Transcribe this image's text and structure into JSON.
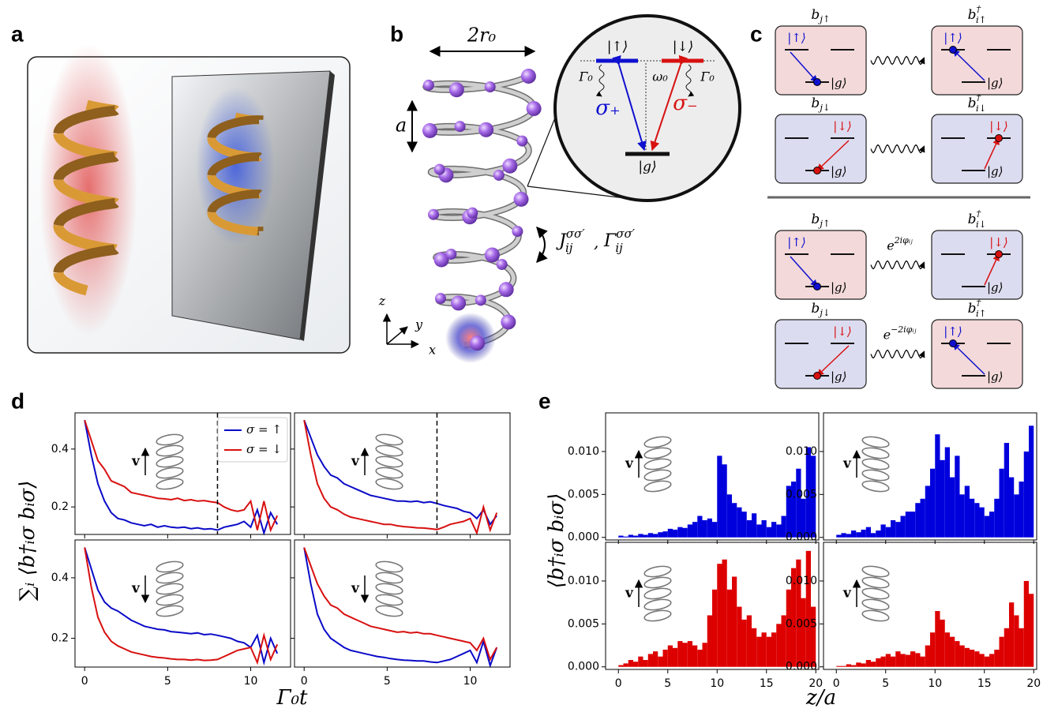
{
  "panel_labels": [
    "a",
    "b",
    "c",
    "d",
    "e"
  ],
  "panel_b": {
    "width_label": "2r₀",
    "pitch_label": "a",
    "coupling": [
      {
        "symbol": "J",
        "sup": "σσ′",
        "sub": "ij"
      },
      {
        "symbol": "Γ",
        "sup": "σσ′",
        "sub": "ij"
      }
    ],
    "separator": ",",
    "axes": {
      "x": "x",
      "y": "y",
      "z": "z"
    },
    "levels": {
      "up": "|↑⟩",
      "down": "|↓⟩",
      "ground": "|g⟩",
      "decay_left": "Γ₀",
      "decay_right": "Γ₀",
      "splitting": "ω₀",
      "sigma_plus": "σ₊",
      "sigma_minus": "σ₋"
    }
  },
  "panel_c": {
    "rows": [
      {
        "left": {
          "op": {
            "symbol": "b",
            "sub": "j↑"
          },
          "spin": "up",
          "state": "|↑⟩",
          "ground": "|g⟩"
        },
        "right": {
          "op": {
            "symbol": "b",
            "sup": "†",
            "sub": "i↑"
          },
          "spin": "up",
          "state": "|↑⟩",
          "ground": "|g⟩"
        }
      },
      {
        "left": {
          "op": {
            "symbol": "b",
            "sub": "j↓"
          },
          "spin": "down",
          "state": "|↓⟩",
          "ground": "|g⟩"
        },
        "right": {
          "op": {
            "symbol": "b",
            "sup": "†",
            "sub": "i↓"
          },
          "spin": "down",
          "state": "|↓⟩",
          "ground": "|g⟩"
        }
      },
      {
        "left": {
          "op": {
            "symbol": "b",
            "sub": "j↑"
          },
          "spin": "up",
          "state": "|↑⟩",
          "ground": "|g⟩"
        },
        "coupling": {
          "symbol": "e",
          "sup": "2iφᵢⱼ"
        },
        "right": {
          "op": {
            "symbol": "b",
            "sup": "†",
            "sub": "i↓"
          },
          "spin": "down",
          "state": "|↓⟩",
          "ground": "|g⟩"
        }
      },
      {
        "left": {
          "op": {
            "symbol": "b",
            "sub": "j↓"
          },
          "spin": "down",
          "state": "|↓⟩",
          "ground": "|g⟩"
        },
        "coupling": {
          "symbol": "e",
          "sup": "−2iφᵢⱼ"
        },
        "right": {
          "op": {
            "symbol": "b",
            "sup": "†",
            "sub": "i↑"
          },
          "spin": "up",
          "state": "|↑⟩",
          "ground": "|g⟩"
        }
      }
    ]
  },
  "panel_d": {
    "ylabel": "∑ᵢ ⟨b†ᵢσ bᵢσ⟩",
    "xlabel": "Γ₀t"
  },
  "panel_e": {
    "ylabel": "⟨b†ᵢσ bᵢσ⟩",
    "xlabel": "z/a"
  },
  "chart_data": [
    {
      "type": "line",
      "x": [
        0,
        0.4,
        0.8,
        1.2,
        1.6,
        2,
        2.4,
        2.8,
        3.2,
        3.6,
        4,
        4.4,
        4.8,
        5.2,
        5.6,
        6,
        6.4,
        6.8,
        7.2,
        7.6,
        8,
        8.4,
        8.8,
        9.2,
        9.6,
        10,
        10.4,
        10.8,
        11.2,
        11.6
      ],
      "series": [
        {
          "name": "σ = ↑",
          "color": "#0a0ac8",
          "values": [
            0.5,
            0.38,
            0.28,
            0.22,
            0.18,
            0.16,
            0.155,
            0.145,
            0.14,
            0.135,
            0.14,
            0.13,
            0.135,
            0.13,
            0.128,
            0.13,
            0.125,
            0.128,
            0.123,
            0.125,
            0.12,
            0.13,
            0.135,
            0.14,
            0.15,
            0.13,
            0.19,
            0.11,
            0.18,
            0.14
          ]
        },
        {
          "name": "σ = ↓",
          "color": "#d81010",
          "values": [
            0.5,
            0.43,
            0.36,
            0.33,
            0.29,
            0.28,
            0.27,
            0.25,
            0.245,
            0.24,
            0.235,
            0.23,
            0.228,
            0.225,
            0.23,
            0.222,
            0.225,
            0.22,
            0.222,
            0.218,
            0.215,
            0.2,
            0.19,
            0.185,
            0.19,
            0.22,
            0.12,
            0.22,
            0.12,
            0.17
          ]
        }
      ],
      "xlim": [
        -0.58,
        12.4
      ],
      "ylim": [
        0.105,
        0.525
      ],
      "xticks": [
        0,
        5,
        10
      ],
      "yticks": [
        0.2,
        0.4
      ],
      "vline": 8,
      "legend": "upper right",
      "inset_label": "v",
      "velocity": "up",
      "helix_handedness": "left"
    },
    {
      "type": "line",
      "x": [
        0,
        0.4,
        0.8,
        1.2,
        1.6,
        2,
        2.4,
        2.8,
        3.2,
        3.6,
        4,
        4.4,
        4.8,
        5.2,
        5.6,
        6,
        6.4,
        6.8,
        7.2,
        7.6,
        8,
        8.4,
        8.8,
        9.2,
        9.6,
        10,
        10.4,
        10.8,
        11.2,
        11.6
      ],
      "series": [
        {
          "color": "#0a0ac8",
          "values": [
            0.5,
            0.44,
            0.38,
            0.34,
            0.31,
            0.3,
            0.28,
            0.27,
            0.26,
            0.25,
            0.24,
            0.235,
            0.23,
            0.225,
            0.22,
            0.22,
            0.218,
            0.22,
            0.215,
            0.218,
            0.212,
            0.205,
            0.2,
            0.195,
            0.185,
            0.18,
            0.16,
            0.19,
            0.14,
            0.17
          ]
        },
        {
          "color": "#d81010",
          "values": [
            0.5,
            0.38,
            0.28,
            0.23,
            0.2,
            0.19,
            0.175,
            0.165,
            0.16,
            0.155,
            0.15,
            0.145,
            0.14,
            0.14,
            0.135,
            0.132,
            0.13,
            0.128,
            0.127,
            0.125,
            0.122,
            0.13,
            0.14,
            0.145,
            0.15,
            0.16,
            0.11,
            0.2,
            0.12,
            0.18
          ]
        }
      ],
      "xlim": [
        -0.58,
        12.4
      ],
      "ylim": [
        0.105,
        0.525
      ],
      "xticks": [
        0,
        5,
        10
      ],
      "yticks": [
        0.2,
        0.4
      ],
      "vline": 8,
      "inset_label": "v",
      "velocity": "up",
      "helix_handedness": "right"
    },
    {
      "type": "line",
      "x": [
        0,
        0.4,
        0.8,
        1.2,
        1.6,
        2,
        2.4,
        2.8,
        3.2,
        3.6,
        4,
        4.4,
        4.8,
        5.2,
        5.6,
        6,
        6.4,
        6.8,
        7.2,
        7.6,
        8,
        8.4,
        8.8,
        9.2,
        9.6,
        10,
        10.4,
        10.8,
        11.2,
        11.6
      ],
      "series": [
        {
          "color": "#0a0ac8",
          "values": [
            0.5,
            0.43,
            0.36,
            0.32,
            0.3,
            0.29,
            0.275,
            0.26,
            0.25,
            0.24,
            0.235,
            0.23,
            0.228,
            0.222,
            0.22,
            0.218,
            0.215,
            0.218,
            0.212,
            0.214,
            0.21,
            0.205,
            0.2,
            0.19,
            0.185,
            0.17,
            0.21,
            0.12,
            0.2,
            0.15
          ]
        },
        {
          "color": "#d81010",
          "values": [
            0.5,
            0.37,
            0.27,
            0.22,
            0.19,
            0.175,
            0.165,
            0.155,
            0.15,
            0.145,
            0.14,
            0.137,
            0.135,
            0.132,
            0.13,
            0.13,
            0.128,
            0.13,
            0.127,
            0.128,
            0.13,
            0.14,
            0.15,
            0.16,
            0.165,
            0.17,
            0.12,
            0.21,
            0.13,
            0.18
          ]
        }
      ],
      "xlim": [
        -0.58,
        12.4
      ],
      "ylim": [
        0.105,
        0.525
      ],
      "xticks": [
        0,
        5,
        10
      ],
      "yticks": [
        0.2,
        0.4
      ],
      "inset_label": "v",
      "velocity": "down",
      "helix_handedness": "left"
    },
    {
      "type": "line",
      "x": [
        0,
        0.4,
        0.8,
        1.2,
        1.6,
        2,
        2.4,
        2.8,
        3.2,
        3.6,
        4,
        4.4,
        4.8,
        5.2,
        5.6,
        6,
        6.4,
        6.8,
        7.2,
        7.6,
        8,
        8.4,
        8.8,
        9.2,
        9.6,
        10,
        10.4,
        10.8,
        11.2,
        11.6
      ],
      "series": [
        {
          "color": "#0a0ac8",
          "values": [
            0.5,
            0.38,
            0.28,
            0.23,
            0.2,
            0.185,
            0.17,
            0.16,
            0.155,
            0.15,
            0.145,
            0.14,
            0.137,
            0.133,
            0.13,
            0.128,
            0.127,
            0.125,
            0.125,
            0.122,
            0.12,
            0.125,
            0.13,
            0.14,
            0.15,
            0.16,
            0.12,
            0.19,
            0.11,
            0.17
          ]
        },
        {
          "color": "#d81010",
          "values": [
            0.5,
            0.44,
            0.38,
            0.34,
            0.31,
            0.3,
            0.28,
            0.27,
            0.26,
            0.25,
            0.24,
            0.235,
            0.23,
            0.225,
            0.22,
            0.222,
            0.218,
            0.22,
            0.215,
            0.215,
            0.21,
            0.205,
            0.2,
            0.195,
            0.19,
            0.185,
            0.16,
            0.2,
            0.13,
            0.17
          ]
        }
      ],
      "xlim": [
        -0.58,
        12.4
      ],
      "ylim": [
        0.105,
        0.525
      ],
      "xticks": [
        0,
        5,
        10
      ],
      "yticks": [
        0.2,
        0.4
      ],
      "inset_label": "v",
      "velocity": "down",
      "helix_handedness": "right"
    },
    {
      "type": "histogram",
      "bins": [
        0,
        0.5,
        1,
        1.5,
        2,
        2.5,
        3,
        3.5,
        4,
        4.5,
        5,
        5.5,
        6,
        6.5,
        7,
        7.5,
        8,
        8.5,
        9,
        9.5,
        10,
        10.5,
        11,
        11.5,
        12,
        12.5,
        13,
        13.5,
        14,
        14.5,
        15,
        15.5,
        16,
        16.5,
        17,
        17.5,
        18,
        18.5,
        19,
        19.5,
        20
      ],
      "values": [
        0.0002,
        0.0001,
        0.0003,
        0.0002,
        0.0004,
        0.0003,
        0.0005,
        0.0004,
        0.0006,
        0.0007,
        0.001,
        0.0009,
        0.0012,
        0.0011,
        0.0015,
        0.0018,
        0.0025,
        0.002,
        0.0022,
        0.0018,
        0.0095,
        0.0085,
        0.005,
        0.004,
        0.0035,
        0.003,
        0.002,
        0.0028,
        0.0015,
        0.002,
        0.0012,
        0.0018,
        0.0015,
        0.0025,
        0.006,
        0.0065,
        0.008,
        0.0045,
        0.0105,
        0.0095
      ],
      "color": "#0000dd",
      "xlim": [
        -1.3,
        20.3
      ],
      "ylim": [
        -0.0003,
        0.0145
      ],
      "xticks": [
        0,
        5,
        10,
        15,
        20
      ],
      "yticks": [
        {
          "value": 0,
          "label": "0.000"
        },
        {
          "value": 0.005,
          "label": "0.005"
        },
        {
          "value": 0.01,
          "label": "0.010"
        }
      ],
      "inset_label": "v",
      "velocity": "up",
      "helix_handedness": "left"
    },
    {
      "type": "histogram",
      "bins": [
        0,
        0.5,
        1,
        1.5,
        2,
        2.5,
        3,
        3.5,
        4,
        4.5,
        5,
        5.5,
        6,
        6.5,
        7,
        7.5,
        8,
        8.5,
        9,
        9.5,
        10,
        10.5,
        11,
        11.5,
        12,
        12.5,
        13,
        13.5,
        14,
        14.5,
        15,
        15.5,
        16,
        16.5,
        17,
        17.5,
        18,
        18.5,
        19,
        19.5,
        20
      ],
      "values": [
        0.0003,
        0.0005,
        0.0004,
        0.0008,
        0.0006,
        0.0009,
        0.0012,
        0.0005,
        0.0008,
        0.0015,
        0.0012,
        0.002,
        0.0018,
        0.0025,
        0.003,
        0.003,
        0.004,
        0.0045,
        0.006,
        0.008,
        0.012,
        0.009,
        0.0105,
        0.007,
        0.0095,
        0.005,
        0.006,
        0.0045,
        0.004,
        0.0035,
        0.0025,
        0.003,
        0.0045,
        0.008,
        0.011,
        0.007,
        0.005,
        0.0065,
        0.01,
        0.013
      ],
      "color": "#0000dd",
      "xlim": [
        -1.3,
        20.3
      ],
      "ylim": [
        -0.0003,
        0.0145
      ],
      "xticks": [
        0,
        5,
        10,
        15,
        20
      ],
      "yticks": [
        {
          "value": 0,
          "label": "0.000"
        },
        {
          "value": 0.005,
          "label": "0.005"
        },
        {
          "value": 0.01,
          "label": "0.010"
        }
      ],
      "inset_label": "v",
      "velocity": "up",
      "helix_handedness": "right"
    },
    {
      "type": "histogram",
      "bins": [
        0,
        0.5,
        1,
        1.5,
        2,
        2.5,
        3,
        3.5,
        4,
        4.5,
        5,
        5.5,
        6,
        6.5,
        7,
        7.5,
        8,
        8.5,
        9,
        9.5,
        10,
        10.5,
        11,
        11.5,
        12,
        12.5,
        13,
        13.5,
        14,
        14.5,
        15,
        15.5,
        16,
        16.5,
        17,
        17.5,
        18,
        18.5,
        19,
        19.5,
        20
      ],
      "values": [
        0.0002,
        0.0004,
        0.0008,
        0.0006,
        0.0012,
        0.0008,
        0.0015,
        0.0018,
        0.0012,
        0.002,
        0.0025,
        0.0022,
        0.003,
        0.0028,
        0.003,
        0.0025,
        0.002,
        0.0028,
        0.006,
        0.009,
        0.012,
        0.0125,
        0.009,
        0.0105,
        0.007,
        0.0055,
        0.006,
        0.0045,
        0.0035,
        0.004,
        0.0035,
        0.004,
        0.005,
        0.006,
        0.009,
        0.0115,
        0.0125,
        0.008,
        0.0135,
        0.007
      ],
      "color": "#dd0000",
      "xlim": [
        -1.3,
        20.3
      ],
      "ylim": [
        -0.0003,
        0.0145
      ],
      "xticks": [
        0,
        5,
        10,
        15,
        20
      ],
      "yticks": [
        {
          "value": 0,
          "label": "0.000"
        },
        {
          "value": 0.005,
          "label": "0.005"
        },
        {
          "value": 0.01,
          "label": "0.010"
        }
      ],
      "inset_label": "v",
      "velocity": "up",
      "helix_handedness": "left"
    },
    {
      "type": "histogram",
      "bins": [
        0,
        0.5,
        1,
        1.5,
        2,
        2.5,
        3,
        3.5,
        4,
        4.5,
        5,
        5.5,
        6,
        6.5,
        7,
        7.5,
        8,
        8.5,
        9,
        9.5,
        10,
        10.5,
        11,
        11.5,
        12,
        12.5,
        13,
        13.5,
        14,
        14.5,
        15,
        15.5,
        16,
        16.5,
        17,
        17.5,
        18,
        18.5,
        19,
        19.5,
        20
      ],
      "values": [
        0.0001,
        0.0001,
        0.0003,
        0.0002,
        0.0005,
        0.0004,
        0.0008,
        0.0006,
        0.001,
        0.0012,
        0.0015,
        0.0012,
        0.0018,
        0.0015,
        0.0014,
        0.0018,
        0.0016,
        0.0012,
        0.0025,
        0.004,
        0.0065,
        0.0055,
        0.004,
        0.0035,
        0.003,
        0.0025,
        0.0022,
        0.002,
        0.0018,
        0.0015,
        0.0012,
        0.0015,
        0.002,
        0.0035,
        0.0045,
        0.0075,
        0.006,
        0.0045,
        0.01,
        0.0085
      ],
      "color": "#dd0000",
      "xlim": [
        -1.3,
        20.3
      ],
      "ylim": [
        -0.0003,
        0.0145
      ],
      "xticks": [
        0,
        5,
        10,
        15,
        20
      ],
      "yticks": [
        {
          "value": 0,
          "label": "0.000"
        },
        {
          "value": 0.005,
          "label": "0.005"
        },
        {
          "value": 0.01,
          "label": "0.010"
        }
      ],
      "inset_label": "v",
      "velocity": "up",
      "helix_handedness": "right"
    }
  ]
}
